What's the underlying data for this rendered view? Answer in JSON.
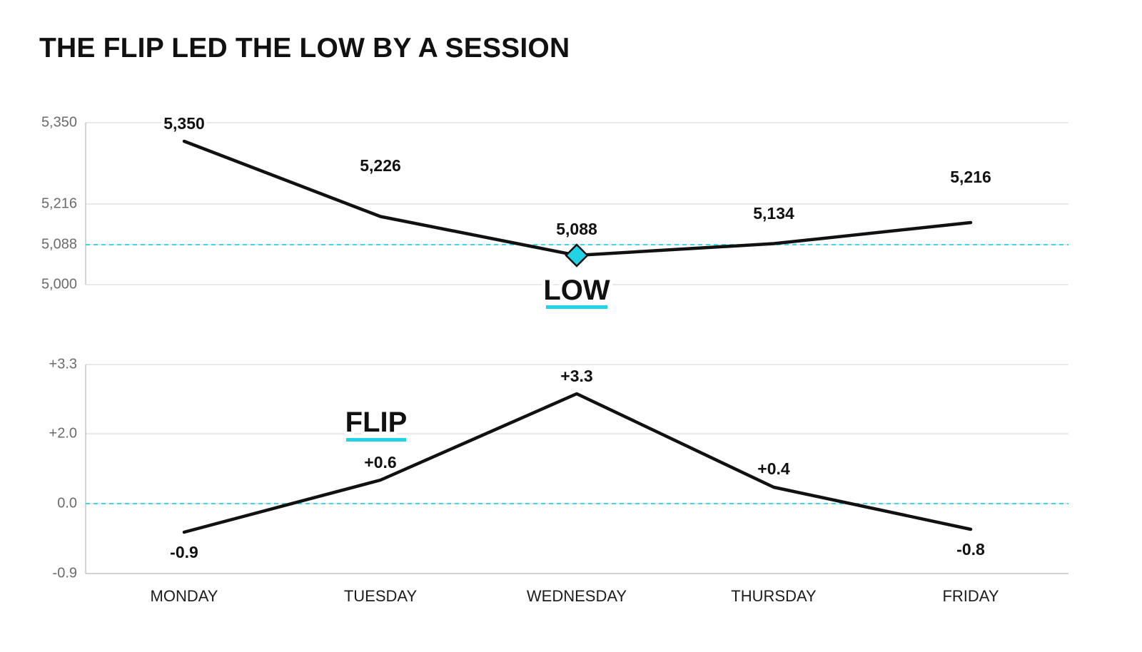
{
  "title": "THE FLIP LED THE LOW BY A SESSION",
  "colors": {
    "accent": "#22d3e6",
    "line": "#111111",
    "grid": "#dcdcdc"
  },
  "chart_data": [
    {
      "type": "line",
      "categories": [
        "MONDAY",
        "TUESDAY",
        "WEDNESDAY",
        "THURSDAY",
        "FRIDAY"
      ],
      "series": [
        {
          "values": [
            5350,
            5226,
            5088,
            5134,
            5216
          ]
        }
      ],
      "data_labels": [
        "5,350",
        "5,226",
        "5,088",
        "5,134",
        "5,216"
      ],
      "ylim": [
        5000,
        5350
      ],
      "yticks": [
        5000,
        5088,
        5216,
        5350
      ],
      "ytick_labels": [
        "5,000",
        "5,088",
        "5,216",
        "5,350"
      ],
      "reference_line": {
        "value": 5088,
        "style": "dashed",
        "color": "#22d3e6"
      },
      "annotation": {
        "text": "LOW",
        "category": "WEDNESDAY"
      },
      "marker": {
        "category": "WEDNESDAY",
        "shape": "diamond"
      },
      "grid": true
    },
    {
      "type": "line",
      "categories": [
        "MONDAY",
        "TUESDAY",
        "WEDNESDAY",
        "THURSDAY",
        "FRIDAY"
      ],
      "series": [
        {
          "values": [
            -0.9,
            0.6,
            3.3,
            0.4,
            -0.8
          ]
        }
      ],
      "data_labels": [
        "-0.9",
        "+0.6",
        "+3.3",
        "+0.4",
        "-0.8"
      ],
      "ylim": [
        -0.9,
        3.3
      ],
      "yticks": [
        -0.9,
        0.0,
        2.0,
        3.3
      ],
      "ytick_labels": [
        "-0.9",
        "0.0",
        "+2.0",
        "+3.3"
      ],
      "reference_line": {
        "value": 0.0,
        "style": "dashed",
        "color": "#22d3e6"
      },
      "annotation": {
        "text": "FLIP",
        "category": "TUESDAY"
      },
      "grid": true
    }
  ]
}
